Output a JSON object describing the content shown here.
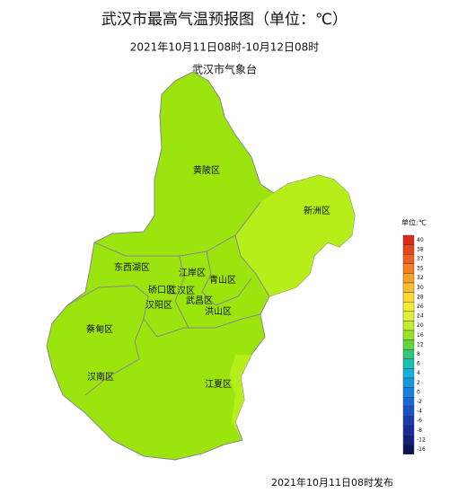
{
  "header": {
    "title": "武汉市最高气温预报图（单位：℃）",
    "period": "2021年10月11日08时-10月12日08时",
    "agency": "武汉市气象台"
  },
  "districts": [
    "黄陂区",
    "新洲区",
    "东西湖区",
    "江岸区",
    "青山区",
    "硚口区",
    "江汉区",
    "汉阳区",
    "武昌区",
    "洪山区",
    "蔡甸区",
    "汉南区",
    "江夏区"
  ],
  "legend": {
    "unit": "单位:℃",
    "items": [
      {
        "value": 40,
        "color": "#d92a1a"
      },
      {
        "value": 38,
        "color": "#e8451a"
      },
      {
        "value": 37,
        "color": "#f06020"
      },
      {
        "value": 35,
        "color": "#f5801f"
      },
      {
        "value": 32,
        "color": "#f9a125"
      },
      {
        "value": 30,
        "color": "#fbbe2c"
      },
      {
        "value": 28,
        "color": "#fdd835"
      },
      {
        "value": 26,
        "color": "#f5ec3a"
      },
      {
        "value": 24,
        "color": "#e0f03a"
      },
      {
        "value": 20,
        "color": "#c2ec2f"
      },
      {
        "value": 16,
        "color": "#9ae229"
      },
      {
        "value": 12,
        "color": "#5fd63a"
      },
      {
        "value": 8,
        "color": "#2ec87a"
      },
      {
        "value": 6,
        "color": "#19c0b0"
      },
      {
        "value": 4,
        "color": "#14b2d8"
      },
      {
        "value": 2,
        "color": "#1499e0"
      },
      {
        "value": 0,
        "color": "#1a80e0"
      },
      {
        "value": -2,
        "color": "#1a66d8"
      },
      {
        "value": -4,
        "color": "#1a50c8"
      },
      {
        "value": -6,
        "color": "#1a3cb0"
      },
      {
        "value": -8,
        "color": "#1a2c98"
      },
      {
        "value": -12,
        "color": "#142080"
      },
      {
        "value": -16,
        "color": "#0c1455"
      }
    ]
  },
  "footer": "2021年10月11日08时发布"
}
